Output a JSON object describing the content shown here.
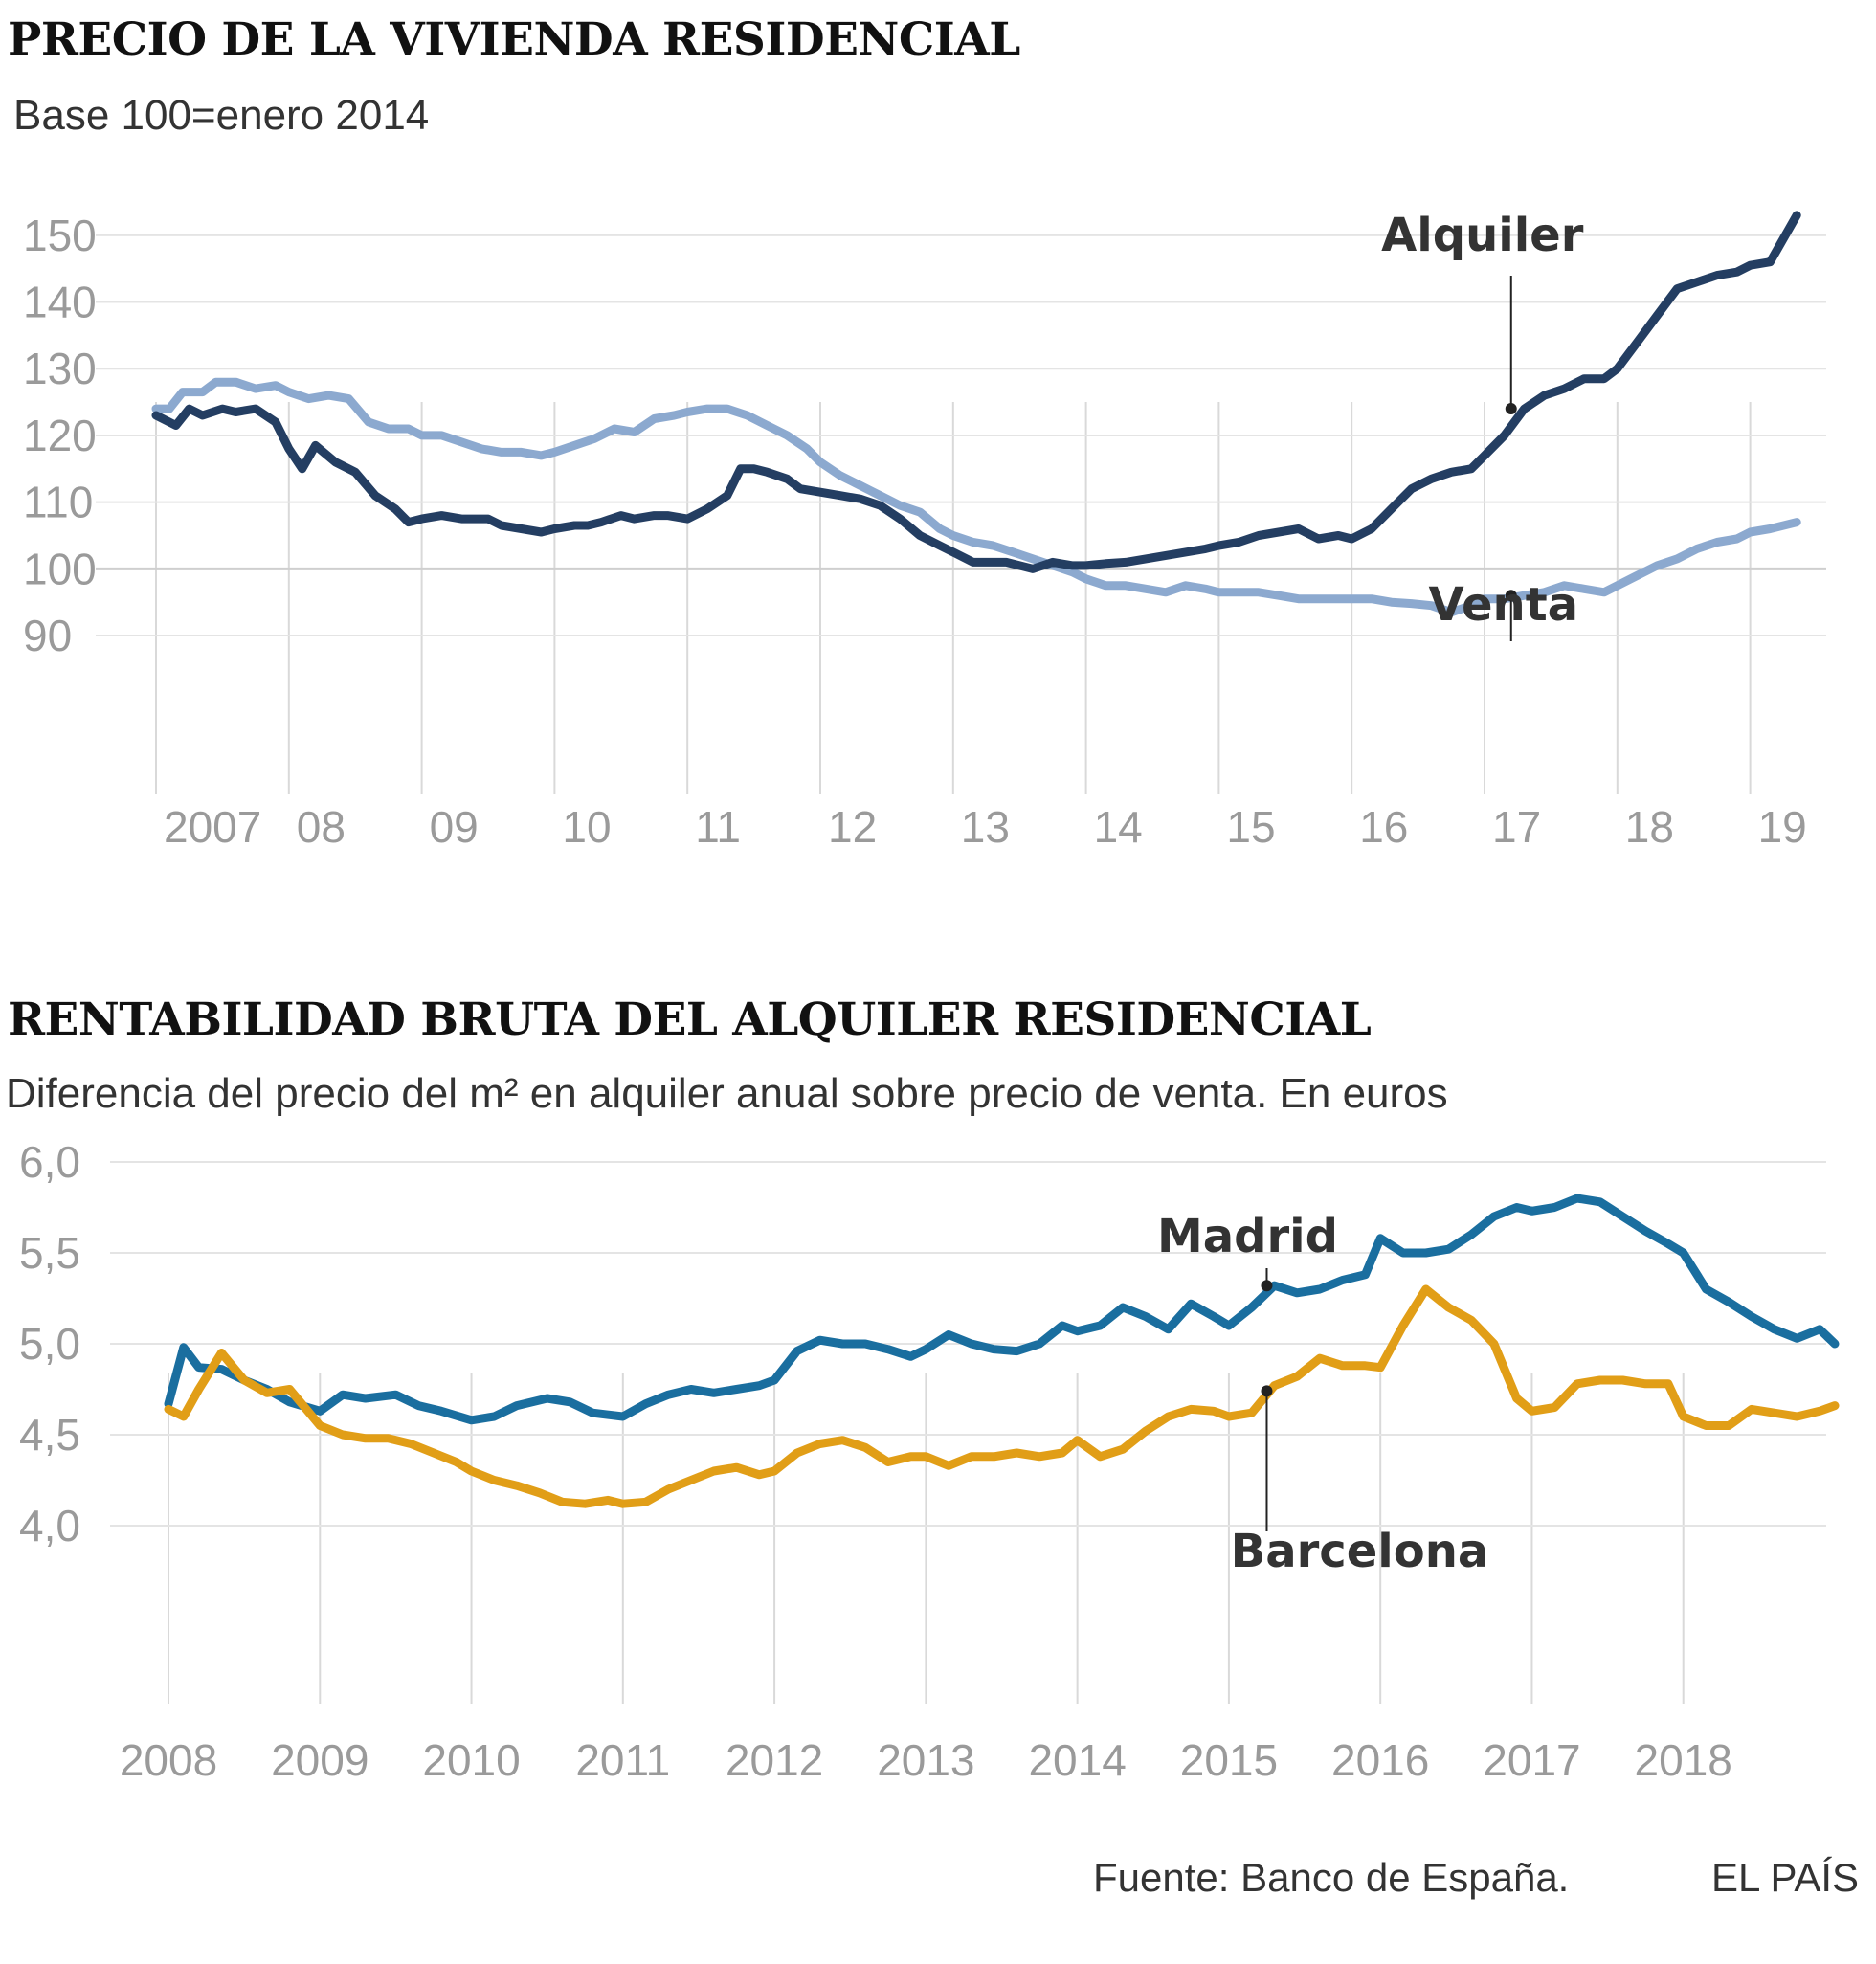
{
  "chart_data": [
    {
      "type": "line",
      "title": "PRECIO DE LA VIVIENDA RESIDENCIAL",
      "subtitle": "Base 100=enero 2014",
      "ylim": [
        88,
        156
      ],
      "yticks": [
        90,
        100,
        110,
        120,
        130,
        140,
        150
      ],
      "xlim": [
        2007.0,
        2019.5
      ],
      "xtick_labels": [
        "2007",
        "08",
        "09",
        "10",
        "11",
        "12",
        "13",
        "14",
        "15",
        "16",
        "17",
        "18",
        "19"
      ],
      "grid": true,
      "series": [
        {
          "name": "Alquiler",
          "color": "#243e62",
          "x": [
            2007.0,
            2007.15,
            2007.25,
            2007.35,
            2007.5,
            2007.6,
            2007.75,
            2007.9,
            2008.0,
            2008.1,
            2008.2,
            2008.35,
            2008.5,
            2008.65,
            2008.8,
            2008.9,
            2009.0,
            2009.15,
            2009.3,
            2009.5,
            2009.6,
            2009.75,
            2009.9,
            2010.0,
            2010.15,
            2010.25,
            2010.35,
            2010.5,
            2010.6,
            2010.75,
            2010.85,
            2011.0,
            2011.15,
            2011.3,
            2011.4,
            2011.5,
            2011.6,
            2011.75,
            2011.85,
            2012.0,
            2012.15,
            2012.3,
            2012.45,
            2012.6,
            2012.75,
            2012.9,
            2013.0,
            2013.15,
            2013.3,
            2013.4,
            2013.5,
            2013.6,
            2013.75,
            2013.9,
            2014.0,
            2014.15,
            2014.3,
            2014.45,
            2014.6,
            2014.75,
            2014.9,
            2015.0,
            2015.15,
            2015.3,
            2015.45,
            2015.6,
            2015.75,
            2015.9,
            2016.0,
            2016.15,
            2016.3,
            2016.45,
            2016.6,
            2016.75,
            2016.9,
            2017.0,
            2017.15,
            2017.3,
            2017.45,
            2017.6,
            2017.75,
            2017.9,
            2018.0,
            2018.15,
            2018.3,
            2018.45,
            2018.6,
            2018.75,
            2018.9,
            2019.0,
            2019.15,
            2019.35
          ],
          "y": [
            123,
            121.5,
            124,
            123,
            124,
            123.5,
            124,
            122,
            118,
            115,
            118.5,
            116,
            114.5,
            111,
            109,
            107,
            107.5,
            108,
            107.5,
            107.5,
            106.5,
            106,
            105.5,
            106,
            106.5,
            106.5,
            107,
            108,
            107.5,
            108,
            108,
            107.5,
            109,
            111,
            115,
            115,
            114.5,
            113.5,
            112,
            111.5,
            111,
            110.5,
            109.5,
            107.5,
            105,
            103.5,
            102.5,
            101,
            101,
            101,
            100.5,
            100,
            101,
            100.5,
            100.5,
            100.8,
            101,
            101.5,
            102,
            102.5,
            103,
            103.5,
            104,
            105,
            105.5,
            106,
            104.5,
            105,
            104.5,
            106,
            109,
            112,
            113.5,
            114.5,
            115,
            117,
            120,
            124,
            126,
            127,
            128.5,
            128.5,
            130,
            134,
            138,
            142,
            143,
            144,
            144.5,
            145.5,
            146,
            153
          ]
        },
        {
          "name": "Venta",
          "color": "#8ca9cf",
          "x": [
            2007.0,
            2007.1,
            2007.2,
            2007.35,
            2007.45,
            2007.6,
            2007.75,
            2007.9,
            2008.0,
            2008.15,
            2008.3,
            2008.45,
            2008.6,
            2008.75,
            2008.9,
            2009.0,
            2009.15,
            2009.3,
            2009.45,
            2009.6,
            2009.75,
            2009.9,
            2010.0,
            2010.15,
            2010.3,
            2010.45,
            2010.6,
            2010.75,
            2010.9,
            2011.0,
            2011.15,
            2011.3,
            2011.45,
            2011.6,
            2011.75,
            2011.9,
            2012.0,
            2012.15,
            2012.3,
            2012.45,
            2012.6,
            2012.75,
            2012.9,
            2013.0,
            2013.15,
            2013.3,
            2013.45,
            2013.6,
            2013.75,
            2013.9,
            2014.0,
            2014.15,
            2014.3,
            2014.45,
            2014.6,
            2014.75,
            2014.9,
            2015.0,
            2015.15,
            2015.3,
            2015.45,
            2015.6,
            2015.75,
            2015.9,
            2016.0,
            2016.15,
            2016.3,
            2016.45,
            2016.6,
            2016.75,
            2016.9,
            2017.0,
            2017.15,
            2017.3,
            2017.45,
            2017.6,
            2017.75,
            2017.9,
            2018.0,
            2018.15,
            2018.3,
            2018.45,
            2018.6,
            2018.75,
            2018.9,
            2019.0,
            2019.15,
            2019.35
          ],
          "y": [
            124,
            124,
            126.5,
            126.5,
            128,
            128,
            127,
            127.5,
            126.5,
            125.5,
            126,
            125.5,
            122,
            121,
            121,
            120,
            120,
            119,
            118,
            117.5,
            117.5,
            117,
            117.5,
            118.5,
            119.5,
            121,
            120.5,
            122.5,
            123,
            123.5,
            124,
            124,
            123,
            121.5,
            120,
            118,
            116,
            114,
            112.5,
            111,
            109.5,
            108.5,
            106,
            105,
            104,
            103.5,
            102.5,
            101.5,
            100.5,
            99.5,
            98.5,
            97.5,
            97.5,
            97,
            96.5,
            97.5,
            97,
            96.5,
            96.5,
            96.5,
            96,
            95.5,
            95.5,
            95.5,
            95.5,
            95.5,
            95,
            94.8,
            94.5,
            93.5,
            94.5,
            95.5,
            95.5,
            96,
            96.5,
            97.5,
            97,
            96.5,
            97.5,
            99,
            100.5,
            101.5,
            103,
            104,
            104.5,
            105.5,
            106,
            107
          ]
        }
      ],
      "annotations": [
        {
          "text": "Alquiler",
          "series": "Alquiler",
          "x": 2017.2,
          "y": 124
        },
        {
          "text": "Venta",
          "series": "Venta",
          "x": 2017.2,
          "y": 96
        }
      ]
    },
    {
      "type": "line",
      "title": "RENTABILIDAD BRUTA DEL ALQUILER RESIDENCIAL",
      "subtitle": "Diferencia del precio del m² en alquiler anual sobre precio de venta. En euros",
      "ylim": [
        3.8,
        6.1
      ],
      "yticks": [
        4.0,
        4.5,
        5.0,
        5.5,
        6.0
      ],
      "ytick_labels": [
        "4,0",
        "4,5",
        "5,0",
        "5,5",
        "6,0"
      ],
      "xlim": [
        2008.0,
        2019.0
      ],
      "xtick_labels": [
        "2008",
        "2009",
        "2010",
        "2011",
        "2012",
        "2013",
        "2014",
        "2015",
        "2016",
        "2017",
        "2018"
      ],
      "grid": true,
      "series": [
        {
          "name": "Madrid",
          "color": "#1a6e9f",
          "x": [
            2008.0,
            2008.1,
            2008.2,
            2008.35,
            2008.5,
            2008.65,
            2008.8,
            2009.0,
            2009.15,
            2009.3,
            2009.5,
            2009.65,
            2009.8,
            2010.0,
            2010.15,
            2010.3,
            2010.5,
            2010.65,
            2010.8,
            2011.0,
            2011.15,
            2011.3,
            2011.45,
            2011.6,
            2011.75,
            2011.9,
            2012.0,
            2012.15,
            2012.3,
            2012.45,
            2012.6,
            2012.75,
            2012.9,
            2013.0,
            2013.15,
            2013.3,
            2013.45,
            2013.6,
            2013.75,
            2013.9,
            2014.0,
            2014.15,
            2014.3,
            2014.45,
            2014.6,
            2014.75,
            2014.9,
            2015.0,
            2015.15,
            2015.3,
            2015.45,
            2015.6,
            2015.75,
            2015.9,
            2016.0,
            2016.15,
            2016.3,
            2016.45,
            2016.6,
            2016.75,
            2016.9,
            2017.0,
            2017.15,
            2017.3,
            2017.45,
            2017.6,
            2017.75,
            2017.9,
            2018.0,
            2018.15,
            2018.3,
            2018.45,
            2018.6,
            2018.75,
            2018.9,
            2019.0
          ],
          "y": [
            4.67,
            4.98,
            4.87,
            4.86,
            4.8,
            4.75,
            4.68,
            4.63,
            4.72,
            4.7,
            4.72,
            4.66,
            4.63,
            4.58,
            4.6,
            4.66,
            4.7,
            4.68,
            4.62,
            4.6,
            4.67,
            4.72,
            4.75,
            4.73,
            4.75,
            4.77,
            4.8,
            4.96,
            5.02,
            5.0,
            5.0,
            4.97,
            4.93,
            4.97,
            5.05,
            5.0,
            4.97,
            4.96,
            5.0,
            5.1,
            5.07,
            5.1,
            5.2,
            5.15,
            5.08,
            5.22,
            5.15,
            5.1,
            5.2,
            5.32,
            5.28,
            5.3,
            5.35,
            5.38,
            5.58,
            5.5,
            5.5,
            5.52,
            5.6,
            5.7,
            5.75,
            5.73,
            5.75,
            5.8,
            5.78,
            5.7,
            5.62,
            5.55,
            5.5,
            5.3,
            5.23,
            5.15,
            5.08,
            5.03,
            5.08,
            5.0
          ]
        },
        {
          "name": "Barcelona",
          "color": "#e19e17",
          "x": [
            2008.0,
            2008.1,
            2008.2,
            2008.35,
            2008.5,
            2008.65,
            2008.8,
            2009.0,
            2009.15,
            2009.3,
            2009.45,
            2009.6,
            2009.75,
            2009.9,
            2010.0,
            2010.15,
            2010.3,
            2010.45,
            2010.6,
            2010.75,
            2010.9,
            2011.0,
            2011.15,
            2011.3,
            2011.45,
            2011.6,
            2011.75,
            2011.9,
            2012.0,
            2012.15,
            2012.3,
            2012.45,
            2012.6,
            2012.75,
            2012.9,
            2013.0,
            2013.15,
            2013.3,
            2013.45,
            2013.6,
            2013.75,
            2013.9,
            2014.0,
            2014.15,
            2014.3,
            2014.45,
            2014.6,
            2014.75,
            2014.9,
            2015.0,
            2015.15,
            2015.3,
            2015.45,
            2015.6,
            2015.75,
            2015.9,
            2016.0,
            2016.15,
            2016.3,
            2016.45,
            2016.6,
            2016.75,
            2016.9,
            2017.0,
            2017.15,
            2017.3,
            2017.45,
            2017.6,
            2017.75,
            2017.9,
            2018.0,
            2018.15,
            2018.3,
            2018.45,
            2018.6,
            2018.75,
            2018.9,
            2019.0
          ],
          "y": [
            4.64,
            4.6,
            4.75,
            4.95,
            4.8,
            4.73,
            4.75,
            4.55,
            4.5,
            4.48,
            4.48,
            4.45,
            4.4,
            4.35,
            4.3,
            4.25,
            4.22,
            4.18,
            4.13,
            4.12,
            4.14,
            4.12,
            4.13,
            4.2,
            4.25,
            4.3,
            4.32,
            4.28,
            4.3,
            4.4,
            4.45,
            4.47,
            4.43,
            4.35,
            4.38,
            4.38,
            4.33,
            4.38,
            4.38,
            4.4,
            4.38,
            4.4,
            4.47,
            4.38,
            4.42,
            4.52,
            4.6,
            4.64,
            4.63,
            4.6,
            4.62,
            4.77,
            4.82,
            4.92,
            4.88,
            4.88,
            4.87,
            5.1,
            5.3,
            5.2,
            5.13,
            5.0,
            4.7,
            4.63,
            4.65,
            4.78,
            4.8,
            4.8,
            4.78,
            4.78,
            4.6,
            4.55,
            4.55,
            4.64,
            4.62,
            4.6,
            4.63,
            4.66
          ]
        }
      ],
      "annotations": [
        {
          "text": "Madrid",
          "series": "Madrid",
          "x": 2015.25,
          "y": 5.32
        },
        {
          "text": "Barcelona",
          "series": "Barcelona",
          "x": 2015.25,
          "y": 4.74
        }
      ]
    }
  ],
  "footer": {
    "source": "Fuente: Banco de España.",
    "brand": "EL PAÍS"
  }
}
